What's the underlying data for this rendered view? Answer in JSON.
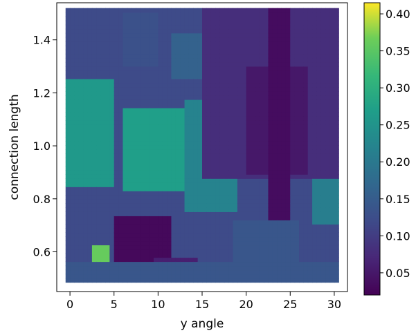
{
  "chart_data": {
    "type": "heatmap",
    "title": "",
    "xlabel": "y angle",
    "ylabel": "connection length",
    "xlim": [
      -1.5,
      31.5
    ],
    "ylim": [
      0.45,
      1.54
    ],
    "data_extent": {
      "x": [
        -0.5,
        30.5
      ],
      "y": [
        0.485,
        1.52
      ]
    },
    "xticks": [
      0,
      5,
      10,
      15,
      20,
      25,
      30
    ],
    "yticks": [
      0.6,
      0.8,
      1.0,
      1.2,
      1.4
    ],
    "ytick_labels": [
      "0.6",
      "0.8",
      "1.0",
      "1.2",
      "1.4"
    ],
    "colormap": "viridis",
    "colorbar": {
      "vmin": 0.02,
      "vmax": 0.415,
      "ticks": [
        0.05,
        0.1,
        0.15,
        0.2,
        0.25,
        0.3,
        0.35,
        0.4
      ],
      "tick_labels": [
        "0.05",
        "0.10",
        "0.15",
        "0.20",
        "0.25",
        "0.30",
        "0.35",
        "0.40"
      ],
      "placement": "right"
    },
    "grid": false,
    "regions": [
      {
        "x": [
          4.8,
          11.5
        ],
        "y": [
          0.56,
          0.74
        ],
        "value": 0.03
      },
      {
        "x": [
          9.5,
          14.5
        ],
        "y": [
          0.49,
          0.58
        ],
        "value": 0.06
      },
      {
        "x": [
          2.5,
          4.5
        ],
        "y": [
          0.5,
          0.62
        ],
        "value": 0.36
      },
      {
        "x": [
          6.0,
          13.5
        ],
        "y": [
          0.83,
          1.14
        ],
        "value": 0.27
      },
      {
        "x": [
          -0.5,
          5.0
        ],
        "y": [
          0.85,
          1.25
        ],
        "value": 0.26
      },
      {
        "x": [
          13.0,
          19.0
        ],
        "y": [
          0.75,
          1.18
        ],
        "value": 0.22
      },
      {
        "x": [
          15.0,
          30.5
        ],
        "y": [
          0.87,
          1.52
        ],
        "value": 0.08
      },
      {
        "x": [
          20.0,
          27.0
        ],
        "y": [
          0.9,
          1.3
        ],
        "value": 0.05
      },
      {
        "x": [
          22.5,
          25.0
        ],
        "y": [
          0.7,
          1.52
        ],
        "value": 0.035
      },
      {
        "x": [
          27.5,
          30.5
        ],
        "y": [
          0.7,
          0.87
        ],
        "value": 0.21
      },
      {
        "x": [
          6.0,
          10.0
        ],
        "y": [
          1.3,
          1.5
        ],
        "value": 0.13
      },
      {
        "x": [
          11.5,
          15.0
        ],
        "y": [
          1.25,
          1.42
        ],
        "value": 0.16
      },
      {
        "x": [
          -0.5,
          30.5
        ],
        "y": [
          0.485,
          0.56
        ],
        "value": 0.14
      },
      {
        "x": [
          18.5,
          26.0
        ],
        "y": [
          0.56,
          0.72
        ],
        "value": 0.14
      }
    ],
    "background_value": 0.12
  }
}
